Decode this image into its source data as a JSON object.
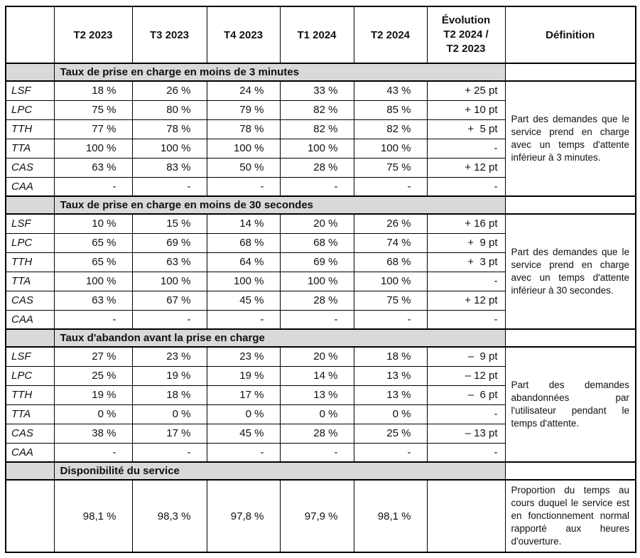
{
  "table": {
    "header": {
      "corner": "",
      "quarters": [
        "T2 2023",
        "T3 2023",
        "T4 2023",
        "T1 2024",
        "T2 2024"
      ],
      "evolution": "Évolution\nT2 2024 /\nT2 2023",
      "definition": "Définition"
    },
    "colors": {
      "section_background": "#d9d9d9",
      "border": "#000000"
    },
    "sections": [
      {
        "title": "Taux de prise en charge en moins de 3 minutes",
        "definition": "Part des demandes que le service prend en charge avec un temps d'attente inférieur à 3 minutes.",
        "rows": [
          {
            "label": "LSF",
            "values": [
              "18 %",
              "26 %",
              "24 %",
              "33 %",
              "43 %"
            ],
            "evolution": "+ 25 pt"
          },
          {
            "label": "LPC",
            "values": [
              "75 %",
              "80 %",
              "79 %",
              "82 %",
              "85 %"
            ],
            "evolution": "+ 10 pt"
          },
          {
            "label": "TTH",
            "values": [
              "77 %",
              "78 %",
              "78 %",
              "82 %",
              "82 %"
            ],
            "evolution": "+  5 pt"
          },
          {
            "label": "TTA",
            "values": [
              "100 %",
              "100 %",
              "100 %",
              "100 %",
              "100 %"
            ],
            "evolution": "-"
          },
          {
            "label": "CAS",
            "values": [
              "63 %",
              "83 %",
              "50 %",
              "28 %",
              "75 %"
            ],
            "evolution": "+ 12 pt"
          },
          {
            "label": "CAA",
            "values": [
              "-",
              "-",
              "-",
              "-",
              "-"
            ],
            "evolution": "-"
          }
        ]
      },
      {
        "title": "Taux de prise en charge en moins de 30 secondes",
        "definition": "Part des demandes que le service prend en charge avec un temps d'attente inférieur à 30 secondes.",
        "rows": [
          {
            "label": "LSF",
            "values": [
              "10 %",
              "15 %",
              "14 %",
              "20 %",
              "26 %"
            ],
            "evolution": "+ 16 pt"
          },
          {
            "label": "LPC",
            "values": [
              "65 %",
              "69 %",
              "68 %",
              "68 %",
              "74 %"
            ],
            "evolution": "+  9 pt"
          },
          {
            "label": "TTH",
            "values": [
              "65 %",
              "63 %",
              "64 %",
              "69 %",
              "68 %"
            ],
            "evolution": "+  3 pt"
          },
          {
            "label": "TTA",
            "values": [
              "100 %",
              "100 %",
              "100 %",
              "100 %",
              "100 %"
            ],
            "evolution": "-"
          },
          {
            "label": "CAS",
            "values": [
              "63 %",
              "67 %",
              "45 %",
              "28 %",
              "75 %"
            ],
            "evolution": "+ 12 pt"
          },
          {
            "label": "CAA",
            "values": [
              "-",
              "-",
              "-",
              "-",
              "-"
            ],
            "evolution": "-"
          }
        ]
      },
      {
        "title": "Taux d'abandon avant la prise en charge",
        "definition": "Part des demandes abandonnées par l'utilisateur pendant le temps d'attente.",
        "rows": [
          {
            "label": "LSF",
            "values": [
              "27 %",
              "23 %",
              "23 %",
              "20 %",
              "18 %"
            ],
            "evolution": "–  9 pt"
          },
          {
            "label": "LPC",
            "values": [
              "25 %",
              "19 %",
              "19 %",
              "14 %",
              "13 %"
            ],
            "evolution": "– 12 pt"
          },
          {
            "label": "TTH",
            "values": [
              "19 %",
              "18 %",
              "17 %",
              "13 %",
              "13 %"
            ],
            "evolution": "–  6 pt"
          },
          {
            "label": "TTA",
            "values": [
              "0 %",
              "0 %",
              "0 %",
              "0 %",
              "0 %"
            ],
            "evolution": "-"
          },
          {
            "label": "CAS",
            "values": [
              "38 %",
              "17 %",
              "45 %",
              "28 %",
              "25 %"
            ],
            "evolution": "– 13 pt"
          },
          {
            "label": "CAA",
            "values": [
              "-",
              "-",
              "-",
              "-",
              "-"
            ],
            "evolution": "-"
          }
        ]
      },
      {
        "title": "Disponibilité du service",
        "definition": "Proportion du temps au cours duquel le service est en fonctionnement normal rapporté aux heures d'ouverture.",
        "rows": [
          {
            "label": "",
            "values": [
              "98,1 %",
              "98,3 %",
              "97,8 %",
              "97,9 %",
              "98,1 %"
            ],
            "evolution": ""
          }
        ]
      }
    ]
  }
}
